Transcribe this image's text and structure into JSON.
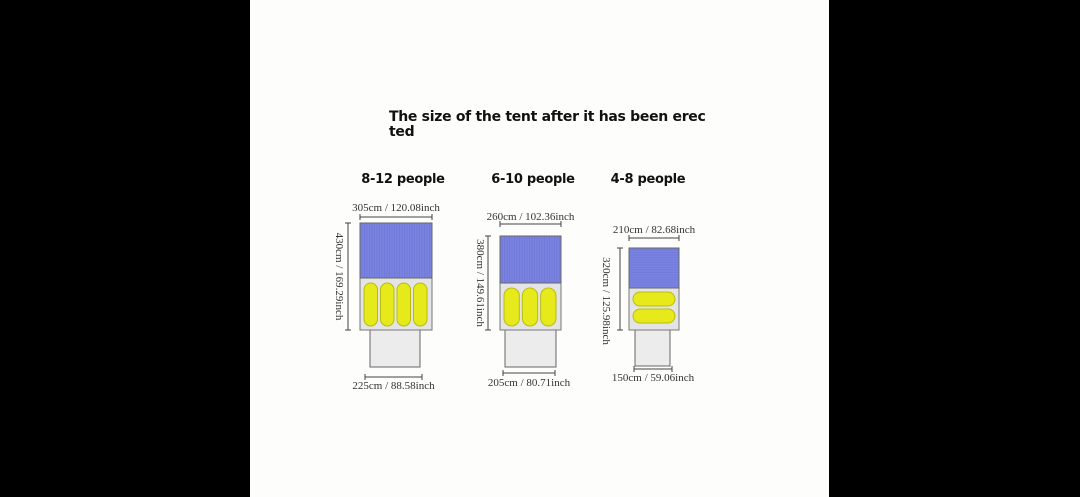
{
  "title": "The size of the tent after it has been erec ted",
  "title_lines": [
    "The size of the tent after it has been erec",
    "ted"
  ],
  "tents": [
    {
      "capacity": "8-12 people",
      "width": "305cm / 120.08inch",
      "length": "430cm / 169.29inch",
      "vestibule": "225cm / 88.58inch",
      "bags": 4
    },
    {
      "capacity": "6-10 people",
      "width": "260cm / 102.36inch",
      "length": "380cm / 149.61inch",
      "vestibule": "205cm / 80.71inch",
      "bags": 3
    },
    {
      "capacity": "4-8 people",
      "width": "210cm / 82.68inch",
      "length": "320cm / 125.98inch",
      "vestibule": "150cm / 59.06inch",
      "bags": 2
    }
  ],
  "colors": {
    "roof": "#7b83e0",
    "floor": "#e4e4e6",
    "sleeping_bag": "#e6ea1a",
    "background": "#fdfdfb"
  }
}
